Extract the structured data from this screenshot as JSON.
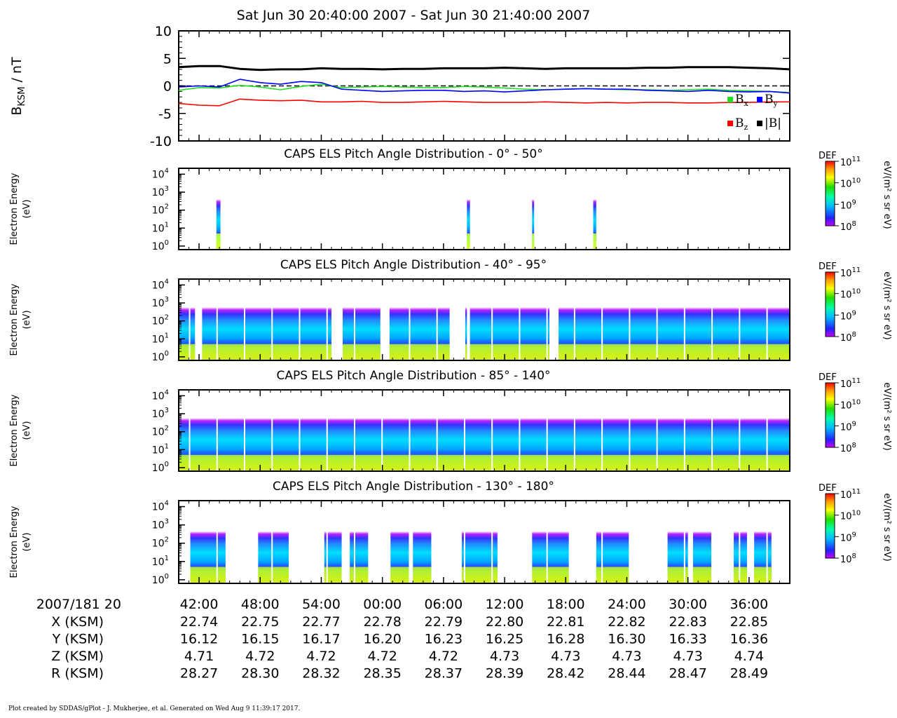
{
  "title": "Sat Jun 30 20:40:00 2007 - Sat Jun 30 21:40:00 2007",
  "footer": "Plot created by SDDAS/gPlot - J. Mukherjee, et al.  Generated on Wed Aug 9 11:39:17 2017.",
  "colors": {
    "bx": "#22dd22",
    "by": "#0000ff",
    "bz": "#ff0000",
    "btot": "#000000"
  },
  "chart_data": [
    {
      "type": "line",
      "ylabel_main": "B",
      "ylabel_sub": "KSM",
      "ylabel_unit": " / nT",
      "ylim": [
        -10,
        10
      ],
      "yticks": [
        "10",
        "5",
        "0",
        "-5",
        "-10"
      ],
      "zero_line": true,
      "x": [
        "20:40",
        "20:42",
        "20:44",
        "20:46",
        "20:48",
        "20:50",
        "20:52",
        "20:54",
        "20:56",
        "20:58",
        "21:00",
        "21:02",
        "21:04",
        "21:06",
        "21:08",
        "21:10",
        "21:12",
        "21:14",
        "21:16",
        "21:18",
        "21:20",
        "21:22",
        "21:24",
        "21:26",
        "21:28",
        "21:30",
        "21:32",
        "21:34",
        "21:36",
        "21:38",
        "21:40"
      ],
      "series": [
        {
          "name": "B",
          "sub": "x",
          "color": "#22dd22",
          "values": [
            -0.8,
            -0.3,
            -0.4,
            0.1,
            -0.2,
            -0.7,
            -0.1,
            0.3,
            -0.3,
            -0.2,
            -0.1,
            -0.2,
            -0.3,
            -0.3,
            -0.1,
            -0.2,
            -0.4,
            -0.6,
            -0.7,
            -0.6,
            -0.5,
            -0.6,
            -0.7,
            -0.7,
            -0.8,
            -0.7,
            -0.6,
            -0.8,
            -0.9,
            -1.0,
            -1.2
          ]
        },
        {
          "name": "B",
          "sub": "y",
          "color": "#0000ff",
          "values": [
            -0.2,
            0.0,
            -0.2,
            1.2,
            0.6,
            0.3,
            0.8,
            0.6,
            -0.6,
            -0.8,
            -1.0,
            -0.9,
            -0.8,
            -0.8,
            -1.0,
            -0.9,
            -1.1,
            -0.9,
            -0.7,
            -0.6,
            -0.5,
            -0.6,
            -0.6,
            -0.8,
            -0.9,
            -1.0,
            -0.8,
            -1.0,
            -1.1,
            -1.0,
            -1.3
          ]
        },
        {
          "name": "B",
          "sub": "z",
          "color": "#ff0000",
          "values": [
            -3.2,
            -3.5,
            -3.6,
            -2.4,
            -2.6,
            -2.7,
            -2.6,
            -2.9,
            -2.9,
            -2.8,
            -3.0,
            -3.0,
            -2.9,
            -2.8,
            -2.9,
            -3.0,
            -3.0,
            -3.0,
            -2.9,
            -3.0,
            -3.1,
            -3.0,
            -3.1,
            -3.0,
            -3.0,
            -3.1,
            -3.1,
            -3.0,
            -3.0,
            -2.9,
            -2.9
          ]
        },
        {
          "name": "|B|",
          "sub": "",
          "color": "#000000",
          "values": [
            3.4,
            3.6,
            3.6,
            3.1,
            2.9,
            3.0,
            3.0,
            3.2,
            3.1,
            3.1,
            3.0,
            3.1,
            3.1,
            3.2,
            3.2,
            3.2,
            3.3,
            3.2,
            3.1,
            3.2,
            3.2,
            3.2,
            3.2,
            3.3,
            3.3,
            3.4,
            3.4,
            3.4,
            3.3,
            3.2,
            3.0
          ]
        }
      ]
    },
    {
      "type": "heatmap",
      "title": "CAPS ELS Pitch Angle Distribution - 0° - 50°",
      "ylabel": [
        "Electron Energy",
        "(eV)"
      ],
      "yticks": [
        "10",
        "10",
        "10",
        "10",
        "10"
      ],
      "ytick_exponents": [
        "0",
        "1",
        "2",
        "3",
        "4"
      ],
      "colorbar": {
        "label": "DEF",
        "unit": "eV/(m² s sr eV)",
        "ticks": [
          "10",
          "10",
          "10",
          "10"
        ],
        "tick_exponents": [
          "11",
          "10",
          "9",
          "8"
        ]
      },
      "scan_minutes": [
        [
          3.7,
          4.1
        ],
        [
          28.3,
          28.6
        ],
        [
          34.7,
          34.9
        ],
        [
          40.7,
          41.0
        ]
      ]
    },
    {
      "type": "heatmap",
      "title": "CAPS ELS Pitch Angle Distribution - 40° - 95°",
      "ylabel": [
        "Electron Energy",
        "(eV)"
      ],
      "yticks": [
        "10",
        "10",
        "10",
        "10",
        "10"
      ],
      "ytick_exponents": [
        "0",
        "1",
        "2",
        "3",
        "4"
      ],
      "colorbar": {
        "label": "DEF",
        "unit": "eV/(m² s sr eV)",
        "ticks": [
          "10",
          "10",
          "10",
          "10"
        ],
        "tick_exponents": [
          "11",
          "10",
          "9",
          "8"
        ]
      },
      "data_minutes": [
        [
          0.0,
          1.6
        ],
        [
          2.3,
          15.0
        ],
        [
          16.1,
          19.8
        ],
        [
          20.7,
          26.6
        ],
        [
          28.0,
          28.3
        ],
        [
          28.6,
          36.4
        ],
        [
          37.3,
          60.0
        ]
      ]
    },
    {
      "type": "heatmap",
      "title": "CAPS ELS Pitch Angle Distribution - 85° - 140°",
      "ylabel": [
        "Electron Energy",
        "(eV)"
      ],
      "yticks": [
        "10",
        "10",
        "10",
        "10",
        "10"
      ],
      "ytick_exponents": [
        "0",
        "1",
        "2",
        "3",
        "4"
      ],
      "colorbar": {
        "label": "DEF",
        "unit": "eV/(m² s sr eV)",
        "ticks": [
          "10",
          "10",
          "10",
          "10"
        ],
        "tick_exponents": [
          "11",
          "10",
          "9",
          "8"
        ]
      },
      "data_minutes": [
        [
          0.0,
          60.0
        ]
      ]
    },
    {
      "type": "heatmap",
      "title": "CAPS ELS Pitch Angle Distribution - 130° - 180°",
      "ylabel": [
        "Electron Energy",
        "(eV)"
      ],
      "yticks": [
        "10",
        "10",
        "10",
        "10",
        "10"
      ],
      "ytick_exponents": [
        "0",
        "1",
        "2",
        "3",
        "4"
      ],
      "colorbar": {
        "label": "DEF",
        "unit": "eV/(m² s sr eV)",
        "ticks": [
          "10",
          "10",
          "10",
          "10"
        ],
        "tick_exponents": [
          "11",
          "10",
          "9",
          "8"
        ]
      },
      "data_minutes": [
        [
          1.0,
          4.6
        ],
        [
          7.8,
          10.8
        ],
        [
          14.3,
          16.0
        ],
        [
          16.8,
          18.6
        ],
        [
          20.8,
          22.6
        ],
        [
          23.0,
          24.8
        ],
        [
          27.8,
          31.3
        ],
        [
          34.7,
          38.3
        ],
        [
          41.0,
          44.2
        ],
        [
          48.0,
          50.0
        ],
        [
          50.5,
          52.3
        ],
        [
          54.5,
          55.8
        ],
        [
          56.5,
          58.2
        ]
      ]
    }
  ],
  "time_axis": {
    "row_label": "2007/181 20",
    "ticks": [
      "42:00",
      "48:00",
      "54:00",
      "00:00",
      "06:00",
      "12:00",
      "18:00",
      "24:00",
      "30:00",
      "36:00"
    ]
  },
  "ephemeris": [
    {
      "label": "X (KSM)",
      "values": [
        "22.74",
        "22.75",
        "22.77",
        "22.78",
        "22.79",
        "22.80",
        "22.81",
        "22.82",
        "22.83",
        "22.85"
      ]
    },
    {
      "label": "Y (KSM)",
      "values": [
        "16.12",
        "16.15",
        "16.17",
        "16.20",
        "16.23",
        "16.25",
        "16.28",
        "16.30",
        "16.33",
        "16.36"
      ]
    },
    {
      "label": "Z (KSM)",
      "values": [
        "4.71",
        "4.72",
        "4.72",
        "4.72",
        "4.72",
        "4.73",
        "4.73",
        "4.73",
        "4.73",
        "4.74"
      ]
    },
    {
      "label": "R (KSM)",
      "values": [
        "28.27",
        "28.30",
        "28.32",
        "28.35",
        "28.37",
        "28.39",
        "28.42",
        "28.44",
        "28.47",
        "28.49"
      ]
    }
  ]
}
